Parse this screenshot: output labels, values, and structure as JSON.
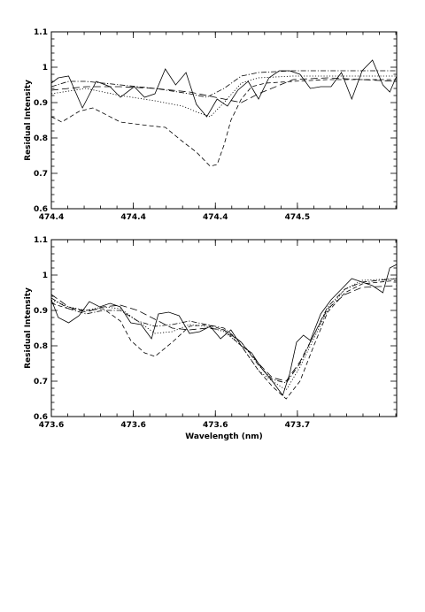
{
  "chart_data": [
    {
      "type": "line",
      "xlabel": "",
      "ylabel": "Residual Intensity",
      "xlim": [
        0,
        1
      ],
      "ylim": [
        0.6,
        1.1
      ],
      "x_tick_labels": [
        {
          "pos": 0.0,
          "label": "474.4"
        },
        {
          "pos": 0.2375,
          "label": "474.4"
        },
        {
          "pos": 0.475,
          "label": "474.4"
        },
        {
          "pos": 0.7125,
          "label": "474.5"
        }
      ],
      "y_ticks": [
        0.6,
        0.7,
        0.8,
        0.9,
        1.0,
        1.1
      ],
      "y_tick_labels": [
        "0.6",
        "0.7",
        "0.8",
        "0.9",
        "1",
        "1.1"
      ],
      "series": [
        {
          "style": "solid",
          "x": [
            0.0,
            0.02,
            0.05,
            0.09,
            0.13,
            0.17,
            0.2,
            0.24,
            0.27,
            0.3,
            0.33,
            0.36,
            0.39,
            0.42,
            0.45,
            0.48,
            0.51,
            0.54,
            0.57,
            0.6,
            0.63,
            0.66,
            0.69,
            0.72,
            0.75,
            0.78,
            0.81,
            0.84,
            0.87,
            0.9,
            0.93,
            0.96,
            0.98,
            1.0
          ],
          "y": [
            0.955,
            0.97,
            0.975,
            0.885,
            0.96,
            0.945,
            0.915,
            0.945,
            0.915,
            0.925,
            0.995,
            0.95,
            0.985,
            0.895,
            0.86,
            0.91,
            0.89,
            0.935,
            0.96,
            0.91,
            0.97,
            0.99,
            0.99,
            0.98,
            0.94,
            0.945,
            0.945,
            0.985,
            0.91,
            0.99,
            1.02,
            0.95,
            0.93,
            0.975
          ]
        },
        {
          "style": "dotted",
          "x": [
            0.0,
            0.1,
            0.2,
            0.3,
            0.38,
            0.43,
            0.46,
            0.5,
            0.55,
            0.6,
            0.7,
            0.8,
            0.9,
            1.0
          ],
          "y": [
            0.925,
            0.94,
            0.92,
            0.905,
            0.89,
            0.87,
            0.86,
            0.9,
            0.955,
            0.97,
            0.975,
            0.975,
            0.975,
            0.975
          ]
        },
        {
          "style": "dash-dot",
          "x": [
            0.0,
            0.05,
            0.1,
            0.2,
            0.3,
            0.4,
            0.45,
            0.5,
            0.55,
            0.6,
            0.7,
            0.8,
            0.9,
            1.0
          ],
          "y": [
            0.945,
            0.96,
            0.96,
            0.95,
            0.94,
            0.925,
            0.915,
            0.94,
            0.975,
            0.985,
            0.99,
            0.99,
            0.99,
            0.99
          ]
        },
        {
          "style": "dashed-long",
          "x": [
            0.0,
            0.05,
            0.1,
            0.2,
            0.3,
            0.4,
            0.5,
            0.55,
            0.6,
            0.7,
            0.8,
            0.9,
            1.0
          ],
          "y": [
            0.935,
            0.94,
            0.945,
            0.945,
            0.94,
            0.93,
            0.91,
            0.9,
            0.925,
            0.965,
            0.97,
            0.965,
            0.96
          ]
        },
        {
          "style": "dashed",
          "x": [
            0.0,
            0.03,
            0.08,
            0.12,
            0.2,
            0.28,
            0.33,
            0.38,
            0.42,
            0.46,
            0.48,
            0.5,
            0.52,
            0.55,
            0.58,
            0.62,
            0.7,
            0.8,
            0.9,
            1.0
          ],
          "y": [
            0.86,
            0.845,
            0.875,
            0.885,
            0.845,
            0.835,
            0.83,
            0.79,
            0.76,
            0.72,
            0.725,
            0.78,
            0.85,
            0.91,
            0.945,
            0.955,
            0.96,
            0.965,
            0.965,
            0.965
          ]
        }
      ]
    },
    {
      "type": "line",
      "xlabel": "Wavelength (nm)",
      "ylabel": "Residual Intensity",
      "xlim": [
        0,
        1
      ],
      "ylim": [
        0.6,
        1.1
      ],
      "x_tick_labels": [
        {
          "pos": 0.0,
          "label": "473.6"
        },
        {
          "pos": 0.2375,
          "label": "473.6"
        },
        {
          "pos": 0.475,
          "label": "473.6"
        },
        {
          "pos": 0.7125,
          "label": "473.7"
        }
      ],
      "y_ticks": [
        0.6,
        0.7,
        0.8,
        0.9,
        1.0,
        1.1
      ],
      "y_tick_labels": [
        "0.6",
        "0.7",
        "0.8",
        "0.9",
        "1",
        "1.1"
      ],
      "series": [
        {
          "style": "solid",
          "x": [
            0.0,
            0.02,
            0.05,
            0.08,
            0.11,
            0.14,
            0.17,
            0.2,
            0.23,
            0.26,
            0.29,
            0.31,
            0.34,
            0.37,
            0.4,
            0.43,
            0.46,
            0.49,
            0.52,
            0.55,
            0.58,
            0.61,
            0.64,
            0.67,
            0.69,
            0.71,
            0.73,
            0.75,
            0.78,
            0.81,
            0.84,
            0.87,
            0.9,
            0.93,
            0.96,
            0.98,
            1.0
          ],
          "y": [
            0.93,
            0.88,
            0.865,
            0.885,
            0.925,
            0.91,
            0.92,
            0.91,
            0.865,
            0.86,
            0.82,
            0.89,
            0.895,
            0.885,
            0.835,
            0.84,
            0.855,
            0.82,
            0.845,
            0.8,
            0.78,
            0.735,
            0.7,
            0.66,
            0.72,
            0.81,
            0.83,
            0.815,
            0.89,
            0.93,
            0.96,
            0.99,
            0.98,
            0.97,
            0.95,
            1.02,
            1.03
          ]
        },
        {
          "style": "dotted",
          "x": [
            0.0,
            0.05,
            0.1,
            0.15,
            0.2,
            0.25,
            0.3,
            0.35,
            0.4,
            0.45,
            0.5,
            0.55,
            0.6,
            0.64,
            0.68,
            0.72,
            0.76,
            0.8,
            0.85,
            0.9,
            1.0
          ],
          "y": [
            0.93,
            0.91,
            0.9,
            0.91,
            0.905,
            0.87,
            0.835,
            0.84,
            0.86,
            0.855,
            0.84,
            0.8,
            0.73,
            0.7,
            0.675,
            0.74,
            0.82,
            0.9,
            0.96,
            0.985,
            0.99
          ]
        },
        {
          "style": "dash-dot",
          "x": [
            0.0,
            0.05,
            0.1,
            0.15,
            0.2,
            0.25,
            0.3,
            0.35,
            0.4,
            0.45,
            0.5,
            0.55,
            0.6,
            0.64,
            0.68,
            0.72,
            0.76,
            0.8,
            0.85,
            0.9,
            1.0
          ],
          "y": [
            0.935,
            0.905,
            0.89,
            0.9,
            0.9,
            0.87,
            0.855,
            0.86,
            0.87,
            0.86,
            0.85,
            0.81,
            0.745,
            0.705,
            0.695,
            0.75,
            0.83,
            0.91,
            0.96,
            0.98,
            0.99
          ]
        },
        {
          "style": "dashed-long",
          "x": [
            0.0,
            0.05,
            0.1,
            0.15,
            0.2,
            0.25,
            0.3,
            0.35,
            0.4,
            0.45,
            0.5,
            0.55,
            0.6,
            0.64,
            0.68,
            0.72,
            0.76,
            0.8,
            0.85,
            0.9,
            1.0
          ],
          "y": [
            0.945,
            0.91,
            0.895,
            0.91,
            0.915,
            0.9,
            0.875,
            0.85,
            0.845,
            0.85,
            0.845,
            0.81,
            0.75,
            0.71,
            0.7,
            0.755,
            0.83,
            0.905,
            0.945,
            0.965,
            0.97
          ]
        },
        {
          "style": "dashed",
          "x": [
            0.0,
            0.05,
            0.1,
            0.15,
            0.2,
            0.23,
            0.27,
            0.3,
            0.35,
            0.4,
            0.45,
            0.5,
            0.55,
            0.6,
            0.64,
            0.68,
            0.72,
            0.76,
            0.8,
            0.85,
            0.9,
            1.0
          ],
          "y": [
            0.92,
            0.905,
            0.9,
            0.905,
            0.87,
            0.815,
            0.78,
            0.77,
            0.81,
            0.855,
            0.86,
            0.845,
            0.8,
            0.73,
            0.685,
            0.65,
            0.7,
            0.8,
            0.895,
            0.95,
            0.975,
            0.985
          ]
        }
      ]
    }
  ]
}
